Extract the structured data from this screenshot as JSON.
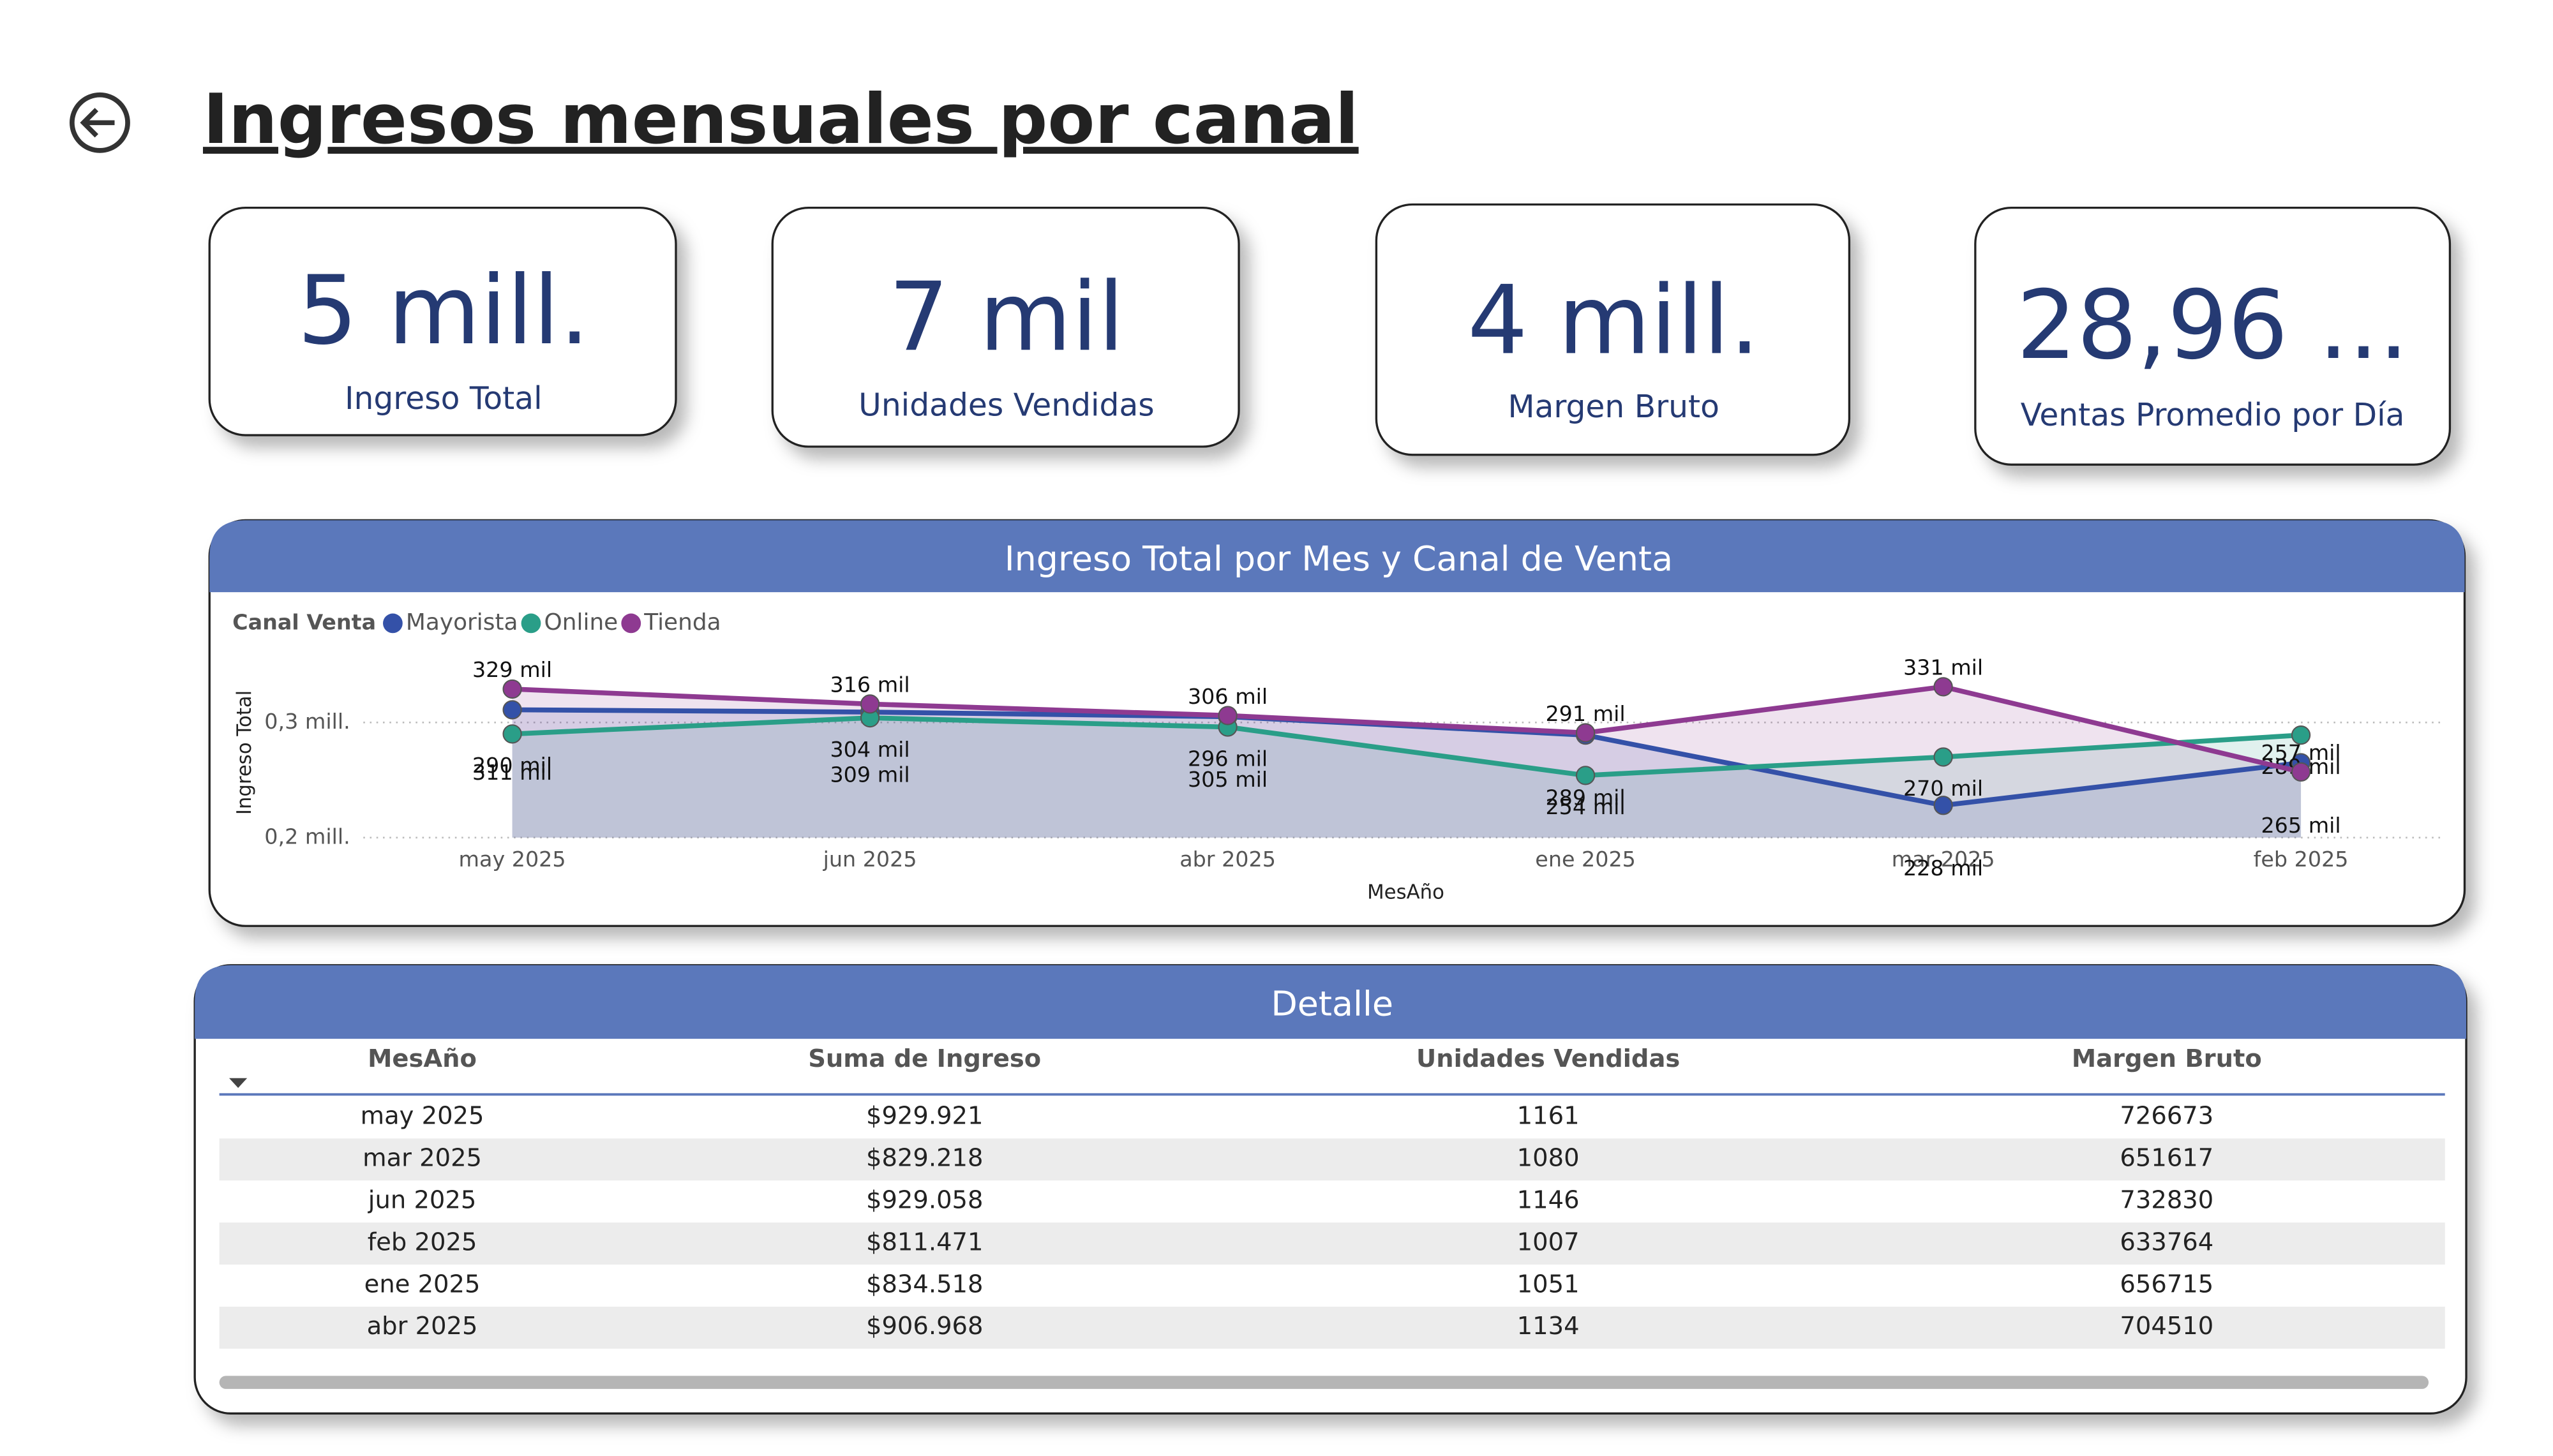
{
  "header": {
    "title": "Ingresos mensuales por canal"
  },
  "kpis": [
    {
      "value": "5 mill.",
      "label": "Ingreso Total"
    },
    {
      "value": "7 mil",
      "label": "Unidades Vendidas"
    },
    {
      "value": "4 mill.",
      "label": "Margen Bruto"
    },
    {
      "value": "28,96 ...",
      "label": "Ventas Promedio por Día"
    }
  ],
  "chart_data": {
    "type": "line",
    "title": "Ingreso Total por Mes y Canal de Venta",
    "legend_title": "Canal Venta",
    "x_label": "MesAño",
    "y_label": "Ingreso Total",
    "categories": [
      "may 2025",
      "jun 2025",
      "abr 2025",
      "ene 2025",
      "mar 2025",
      "feb 2025"
    ],
    "series": [
      {
        "name": "Mayorista",
        "color": "#3451a8",
        "values": [
          311000,
          309000,
          305000,
          289000,
          228000,
          265000
        ],
        "value_labels": [
          "311 mil",
          "309 mil",
          "305 mil",
          "289 mil",
          "228 mil",
          "265 mil"
        ]
      },
      {
        "name": "Online",
        "color": "#2a9e88",
        "values": [
          290000,
          304000,
          296000,
          254000,
          270000,
          289000
        ],
        "value_labels": [
          "290 mil",
          "304 mil",
          "296 mil",
          "254 mil",
          "270 mil",
          "289 mil"
        ]
      },
      {
        "name": "Tienda",
        "color": "#8e3a91",
        "values": [
          329000,
          316000,
          306000,
          291000,
          331000,
          257000
        ],
        "value_labels": [
          "329 mil",
          "316 mil",
          "306 mil",
          "291 mil",
          "331 mil",
          "257 mil"
        ]
      }
    ],
    "ylim": [
      200000,
      352000
    ],
    "yticks": [
      {
        "value": 200000,
        "label": "0,2 mill."
      },
      {
        "value": 300000,
        "label": "0,3 mill."
      }
    ],
    "grid": true
  },
  "table": {
    "title": "Detalle",
    "columns": [
      "MesAño",
      "Suma de Ingreso",
      "Unidades Vendidas",
      "Margen Bruto"
    ],
    "rows": [
      [
        "may 2025",
        "$929.921",
        1161,
        726673
      ],
      [
        "mar 2025",
        "$829.218",
        1080,
        651617
      ],
      [
        "jun 2025",
        "$929.058",
        1146,
        732830
      ],
      [
        "feb 2025",
        "$811.471",
        1007,
        633764
      ],
      [
        "ene 2025",
        "$834.518",
        1051,
        656715
      ],
      [
        "abr 2025",
        "$906.968",
        1134,
        704510
      ]
    ]
  }
}
